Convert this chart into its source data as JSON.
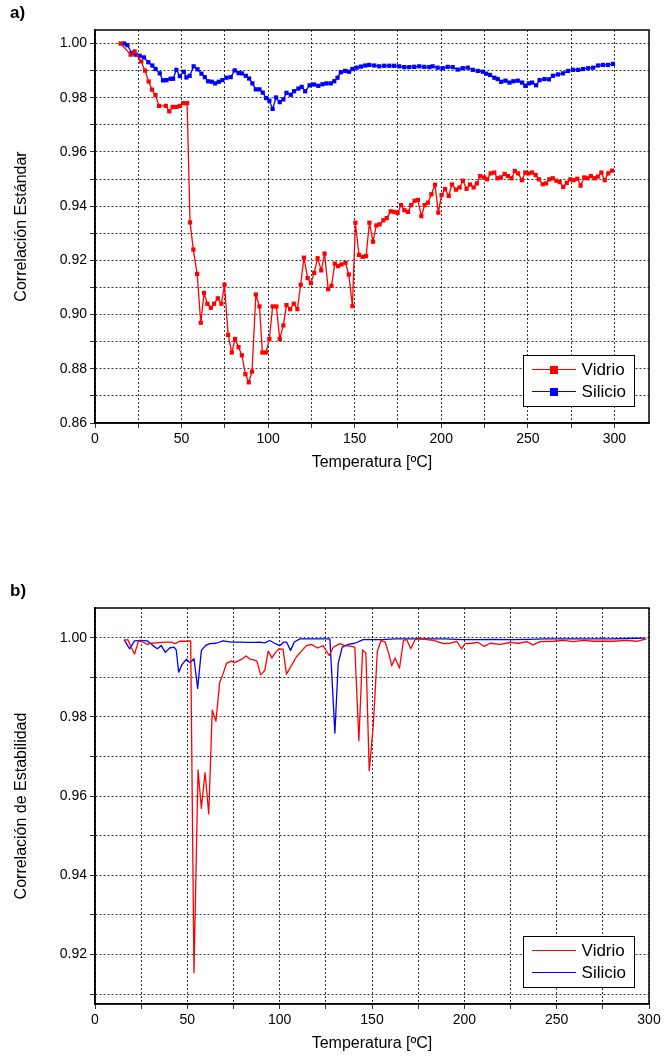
{
  "chart_data": [
    {
      "type": "line",
      "annotations": [
        "a)"
      ],
      "xlabel": "Temperatura [ºC]",
      "ylabel": "Correlación Estándar",
      "xlim": [
        0,
        320
      ],
      "ylim": [
        0.86,
        1.005
      ],
      "xticks": [
        0,
        {
          "value": 25,
          "label": null
        },
        50,
        {
          "value": 75,
          "label": null
        },
        100,
        {
          "value": 125,
          "label": null
        },
        150,
        {
          "value": 175,
          "label": null
        },
        200,
        {
          "value": 225,
          "label": null
        },
        250,
        {
          "value": 275,
          "label": null
        },
        300
      ],
      "yticks": [
        0.86,
        {
          "value": 0.87,
          "label": null
        },
        0.88,
        {
          "value": 0.89,
          "label": null
        },
        {
          "value": 0.9,
          "label": "0.90"
        },
        {
          "value": 0.91,
          "label": null
        },
        0.92,
        {
          "value": 0.93,
          "label": null
        },
        0.94,
        {
          "value": 0.95,
          "label": null
        },
        0.96,
        {
          "value": 0.97,
          "label": null
        },
        0.98,
        {
          "value": 0.99,
          "label": null
        },
        {
          "value": 1,
          "label": "1.00"
        }
      ],
      "grid": true,
      "legend": "bottom right",
      "marker": "square",
      "series": [
        {
          "name": "Vidrio",
          "color": "#ff0000",
          "x": [
            14.8,
            20.6,
            22.9,
            26.7,
            28.9,
            31,
            32.9,
            34.9,
            37,
            40.9,
            42.9,
            44.9,
            47,
            49.1,
            51,
            53.2,
            54.9,
            56.8,
            59,
            61.1,
            63,
            64.9,
            66.9,
            68.8,
            70.9,
            73,
            74.8,
            76.9,
            79,
            80.9,
            82.9,
            84.8,
            86.9,
            88.8,
            90.7,
            92.9,
            95,
            96.7,
            98.8,
            100.7,
            102.6,
            104.8,
            106.7,
            108.8,
            110.6,
            112.7,
            114.8,
            116.9,
            118.8,
            120.7,
            122.8,
            124.7,
            126.6,
            128.6,
            130.7,
            132.6,
            134.7,
            136.6,
            138.5,
            140.4,
            142.4,
            144.7,
            146.6,
            148.7,
            150.4,
            152.5,
            154.6,
            156.6,
            158.5,
            160.6,
            162.5,
            164.4,
            166.6,
            168.5,
            170.8,
            172.9,
            174.8,
            176.8,
            178.7,
            180.8,
            182.7,
            184.6,
            186.5,
            188.5,
            190.4,
            192.3,
            194.3,
            196.4,
            198.3,
            200.2,
            202.2,
            204.3,
            206.2,
            208.5,
            210.6,
            212.5,
            214.6,
            216.6,
            218.7,
            220.6,
            222.5,
            224.6,
            226.5,
            228.5,
            230.6,
            232.5,
            234.4,
            236.6,
            238.5,
            240.6,
            242.5,
            244.4,
            246.6,
            248.5,
            250.4,
            252.4,
            254.5,
            256.4,
            258.6,
            260.5,
            262.4,
            264.4,
            266.5,
            268.4,
            270.5,
            272.5,
            274.6,
            276.5,
            278.6,
            280.5,
            282.6,
            284.5,
            286.4,
            288.5,
            290.4,
            292.5,
            294.4,
            296.5,
            298.6
          ],
          "values": [
            1.0,
            0.9959,
            0.9971,
            0.9934,
            0.99,
            0.986,
            0.983,
            0.981,
            0.977,
            0.977,
            0.975,
            0.9766,
            0.9766,
            0.977,
            0.978,
            0.978,
            0.934,
            0.924,
            0.915,
            0.897,
            0.908,
            0.904,
            0.9025,
            0.904,
            0.906,
            0.904,
            0.911,
            0.8925,
            0.886,
            0.891,
            0.888,
            0.885,
            0.878,
            0.875,
            0.879,
            0.9074,
            0.903,
            0.886,
            0.886,
            0.891,
            0.903,
            0.903,
            0.891,
            0.896,
            0.9035,
            0.902,
            0.904,
            0.902,
            0.911,
            0.921,
            0.9135,
            0.9116,
            0.9154,
            0.9208,
            0.9163,
            0.9225,
            0.9094,
            0.9106,
            0.9188,
            0.9179,
            0.9185,
            0.9191,
            0.9148,
            0.9031,
            0.9339,
            0.922,
            0.9213,
            0.9216,
            0.9339,
            0.9269,
            0.9329,
            0.9333,
            0.9348,
            0.9356,
            0.9381,
            0.9379,
            0.9375,
            0.9404,
            0.9385,
            0.9379,
            0.9404,
            0.942,
            0.9423,
            0.9363,
            0.9404,
            0.9413,
            0.9444,
            0.9479,
            0.9376,
            0.9441,
            0.9463,
            0.9438,
            0.948,
            0.9461,
            0.9469,
            0.9494,
            0.9464,
            0.948,
            0.9469,
            0.9484,
            0.9511,
            0.9506,
            0.9499,
            0.9521,
            0.9524,
            0.9503,
            0.9506,
            0.9519,
            0.9511,
            0.9503,
            0.953,
            0.9521,
            0.9496,
            0.9524,
            0.9521,
            0.9524,
            0.9515,
            0.9499,
            0.9481,
            0.9484,
            0.9499,
            0.9503,
            0.9494,
            0.9489,
            0.9471,
            0.9486,
            0.9499,
            0.9496,
            0.9501,
            0.9476,
            0.9506,
            0.9503,
            0.9511,
            0.9503,
            0.9509,
            0.9524,
            0.9496,
            0.9521,
            0.9531
          ]
        },
        {
          "name": "Silicio",
          "color": "#0000ff",
          "x": [
            16.8,
            18.7,
            21.2,
            23.5,
            25.8,
            28.3,
            30.8,
            33.1,
            35,
            37.4,
            39.3,
            41.2,
            43.6,
            45.1,
            47,
            49,
            51.3,
            52.8,
            54.7,
            57,
            59.2,
            61.5,
            63.4,
            65.3,
            67.4,
            69.4,
            71.5,
            73.6,
            75.9,
            78.4,
            80.7,
            82.9,
            84.8,
            87.1,
            89,
            90.9,
            92.9,
            95,
            96.9,
            98.8,
            100.7,
            102.6,
            104.6,
            106.7,
            108.8,
            110.6,
            113.1,
            115,
            117.5,
            119.4,
            121.4,
            124,
            126.5,
            129,
            131.4,
            133.7,
            136.2,
            138.2,
            140.1,
            142,
            144.5,
            146.8,
            148.7,
            151.1,
            153.6,
            156.1,
            158.4,
            161.3,
            164.2,
            167.1,
            170,
            172.8,
            175.7,
            178.6,
            181.5,
            184.4,
            187.3,
            190.2,
            193.1,
            195,
            197.9,
            200.8,
            203.7,
            206.6,
            209.5,
            212.4,
            215.3,
            218.2,
            221.1,
            224,
            225.9,
            228.2,
            230.7,
            232.6,
            234.6,
            237.1,
            239.4,
            241.7,
            244.2,
            246.7,
            248.6,
            250.6,
            252.5,
            254.8,
            256.8,
            259.6,
            262.2,
            264.5,
            267.4,
            270.3,
            273.2,
            276.1,
            279,
            281.9,
            284.8,
            287.7,
            290.6,
            293.4,
            296.3,
            299.2
          ],
          "values": [
            1.0,
            0.9994,
            0.9965,
            0.9959,
            0.9955,
            0.9949,
            0.9931,
            0.9919,
            0.9906,
            0.989,
            0.9864,
            0.9865,
            0.987,
            0.987,
            0.9903,
            0.988,
            0.9896,
            0.9875,
            0.9881,
            0.9916,
            0.9905,
            0.9889,
            0.9876,
            0.9861,
            0.9859,
            0.9853,
            0.9859,
            0.9865,
            0.9874,
            0.9876,
            0.9901,
            0.9891,
            0.989,
            0.9881,
            0.9871,
            0.9853,
            0.9831,
            0.9831,
            0.9819,
            0.9799,
            0.9789,
            0.9759,
            0.9801,
            0.9784,
            0.9794,
            0.9818,
            0.9811,
            0.9824,
            0.9834,
            0.984,
            0.9824,
            0.9846,
            0.9849,
            0.9844,
            0.985,
            0.9853,
            0.9853,
            0.9861,
            0.9874,
            0.9894,
            0.9899,
            0.9896,
            0.9906,
            0.9911,
            0.9915,
            0.9919,
            0.9921,
            0.9919,
            0.9916,
            0.9918,
            0.9918,
            0.9918,
            0.9916,
            0.9913,
            0.9913,
            0.9914,
            0.9916,
            0.9914,
            0.9913,
            0.9916,
            0.9911,
            0.9909,
            0.9914,
            0.9913,
            0.9904,
            0.9909,
            0.9911,
            0.9903,
            0.9899,
            0.9896,
            0.9889,
            0.9884,
            0.9874,
            0.9869,
            0.9859,
            0.9863,
            0.9856,
            0.9861,
            0.9863,
            0.9856,
            0.9844,
            0.9853,
            0.9856,
            0.9846,
            0.9865,
            0.9869,
            0.9868,
            0.9881,
            0.9886,
            0.989,
            0.9899,
            0.9903,
            0.9903,
            0.9906,
            0.9909,
            0.9911,
            0.9919,
            0.9921,
            0.9921,
            0.9925
          ]
        }
      ]
    },
    {
      "type": "line",
      "annotations": [
        "b)"
      ],
      "xlabel": "Temperatura [ºC]",
      "ylabel": "Correlación de Estabilidad",
      "xlim": [
        0,
        300
      ],
      "ylim": [
        0.9075,
        1.0075
      ],
      "xticks": [
        0,
        {
          "value": 25,
          "label": null
        },
        50,
        {
          "value": 75,
          "label": null
        },
        100,
        {
          "value": 125,
          "label": null
        },
        150,
        {
          "value": 175,
          "label": null
        },
        200,
        {
          "value": 225,
          "label": null
        },
        250,
        {
          "value": 275,
          "label": null
        },
        300
      ],
      "yticks": [
        {
          "value": 0.91,
          "label": null
        },
        0.92,
        {
          "value": 0.93,
          "label": null
        },
        0.94,
        {
          "value": 0.95,
          "label": null
        },
        0.96,
        {
          "value": 0.97,
          "label": null
        },
        0.98,
        {
          "value": 0.99,
          "label": null
        },
        {
          "value": 1,
          "label": "1.00"
        }
      ],
      "grid": true,
      "legend": "bottom right",
      "series": [
        {
          "name": "Vidrio",
          "color": "#ff0000",
          "x": [
            15.7,
            17.8,
            19.6,
            21.4,
            23.6,
            26,
            28.3,
            30.5,
            33.2,
            35.9,
            38.6,
            41.3,
            43.5,
            45.8,
            48.5,
            51.8,
            53.6,
            55.8,
            57.6,
            59.6,
            61.6,
            63.5,
            65.5,
            67.5,
            69.3,
            71.3,
            73.8,
            75.6,
            77.8,
            79.6,
            81.8,
            83.8,
            85.9,
            87.7,
            89.7,
            91.9,
            93.8,
            95.8,
            97.8,
            99.8,
            101.8,
            103.7,
            106.9,
            109.1,
            111.8,
            114.5,
            117.2,
            120.5,
            123.5,
            126.8,
            129,
            132.6,
            135.3,
            138,
            140.7,
            142.9,
            144.9,
            146.7,
            148.5,
            150.7,
            152.9,
            154.9,
            157.1,
            158.9,
            160.7,
            162.5,
            164.9,
            167,
            168.8,
            171,
            173.3,
            176,
            179.6,
            183.3,
            188.7,
            192.3,
            195.9,
            198.6,
            200.4,
            204,
            207.6,
            210.7,
            214,
            219.4,
            224.8,
            229.3,
            233.8,
            237.1,
            241,
            248.2,
            253.6,
            259.1,
            264.5,
            269.9,
            275.3,
            280.7,
            287.9,
            293.3,
            298.7
          ],
          "values": [
            0.9993,
            0.9995,
            0.9976,
            0.9959,
            0.9992,
            0.9989,
            0.9983,
            0.9986,
            0.9987,
            0.9988,
            0.9989,
            0.9989,
            0.9985,
            0.9991,
            0.9991,
            0.9992,
            0.9154,
            0.9666,
            0.9569,
            0.9659,
            0.9555,
            0.9817,
            0.9789,
            0.9887,
            0.9908,
            0.9936,
            0.9941,
            0.9937,
            0.9942,
            0.9946,
            0.9954,
            0.9946,
            0.9944,
            0.9941,
            0.9906,
            0.9917,
            0.9966,
            0.9949,
            0.9963,
            0.9972,
            0.9971,
            0.9908,
            0.9934,
            0.9952,
            0.9966,
            0.998,
            0.9983,
            0.9974,
            0.998,
            0.9955,
            0.9976,
            0.9985,
            0.998,
            0.9979,
            0.9976,
            0.974,
            0.9969,
            0.9961,
            0.9664,
            0.9779,
            0.9966,
            0.9993,
            0.9989,
            0.9963,
            0.9929,
            0.9949,
            0.9923,
            0.9993,
            0.9995,
            0.9972,
            0.9995,
            0.9997,
            0.9995,
            0.9993,
            0.9985,
            0.9986,
            0.9991,
            0.9972,
            0.9985,
            0.9986,
            0.9988,
            0.9978,
            0.9986,
            0.9983,
            0.9988,
            0.9986,
            0.999,
            0.9982,
            0.999,
            0.9991,
            0.9993,
            0.999,
            0.9993,
            0.9991,
            0.9991,
            0.9991,
            0.9993,
            0.9991,
            0.9997
          ]
        },
        {
          "name": "Silicio",
          "color": "#0000ff",
          "x": [
            15.7,
            18.8,
            21.4,
            24.7,
            28.3,
            31.4,
            33.7,
            35.9,
            38.1,
            40.4,
            42.8,
            44,
            45.3,
            47.1,
            49.5,
            51.3,
            53.6,
            55.6,
            57.6,
            59.8,
            62.1,
            65.7,
            69.3,
            73.8,
            78.4,
            82.9,
            86.5,
            89.2,
            91.9,
            94.6,
            97.3,
            100,
            102.4,
            103.7,
            105.9,
            107.9,
            111,
            115.5,
            120.9,
            127.2,
            129.9,
            131.7,
            133.9,
            137.1,
            140.7,
            145.2,
            149.7,
            155.1,
            162.4,
            171.4,
            180.4,
            189.5,
            198.5,
            207.5,
            216.5,
            225.5,
            234.6,
            243.6,
            252.6,
            261.6,
            270.6,
            279.7,
            288.7,
            297.7
          ],
          "values": [
            0.9995,
            0.9972,
            0.9992,
            0.9993,
            0.9992,
            0.998,
            0.9972,
            0.998,
            0.9963,
            0.9974,
            0.9976,
            0.9969,
            0.9913,
            0.9932,
            0.9946,
            0.9937,
            0.9947,
            0.9872,
            0.9968,
            0.998,
            0.9985,
            0.9986,
            0.9992,
            0.9989,
            0.9989,
            0.9988,
            0.9988,
            0.9989,
            0.9987,
            0.9993,
            0.9986,
            0.998,
            0.9989,
            0.9989,
            0.9968,
            0.9989,
            0.9997,
            0.9997,
            0.9997,
            0.9997,
            0.9759,
            0.9935,
            0.9976,
            0.9983,
            0.9986,
            0.9995,
            0.9995,
            0.9995,
            0.9997,
            0.9997,
            0.9997,
            0.9997,
            0.9995,
            0.9995,
            0.9996,
            0.9995,
            0.9996,
            0.9997,
            0.9997,
            0.9997,
            0.9997,
            0.9997,
            0.9998,
            0.9999
          ]
        }
      ]
    }
  ]
}
